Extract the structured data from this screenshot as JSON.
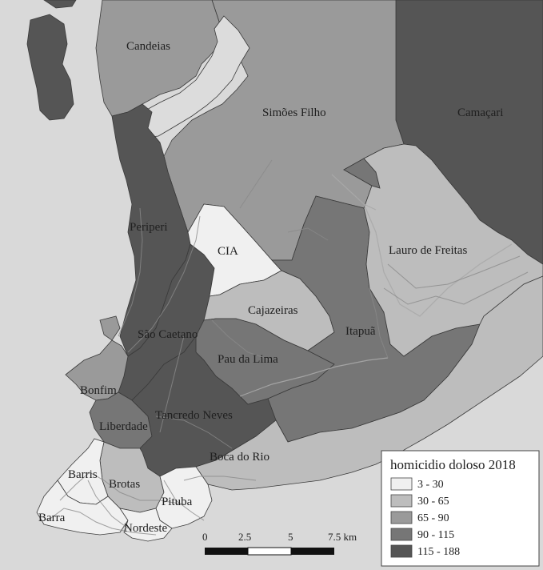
{
  "map": {
    "labels": {
      "candeias": "Candeias",
      "simoes_filho": "Simões Filho",
      "camacari": "Camaçari",
      "periperi": "Periperi",
      "cia": "CIA",
      "lauro_de_freitas": "Lauro de Freitas",
      "cajazeiras": "Cajazeiras",
      "sao_caetano": "São Caetano",
      "itapua": "Itapuã",
      "pau_da_lima": "Pau da Lima",
      "bonfim": "Bonfim",
      "liberdade": "Liberdade",
      "tancredo_neves": "Tancredo Neves",
      "boca_do_rio": "Boca do Rio",
      "barris": "Barris",
      "brotas": "Brotas",
      "pituba": "Pituba",
      "barra": "Barra",
      "nordeste": "Nordeste"
    },
    "colors": {
      "water": "#d9d9d9",
      "class1": "#f0f0f0",
      "class2": "#bdbdbd",
      "class3": "#9a9a9a",
      "class4": "#767676",
      "class5": "#555555"
    }
  },
  "legend": {
    "title": "homicidio doloso 2018",
    "items": [
      {
        "label": " 3 - 30",
        "color": "#f0f0f0"
      },
      {
        "label": "30 - 65",
        "color": "#bdbdbd"
      },
      {
        "label": "65 - 90",
        "color": "#9a9a9a"
      },
      {
        "label": "90 - 115",
        "color": "#767676"
      },
      {
        "label": "115 - 188",
        "color": "#555555"
      }
    ]
  },
  "scalebar": {
    "ticks": [
      "0",
      "2.5",
      "5",
      "7.5 km"
    ]
  }
}
